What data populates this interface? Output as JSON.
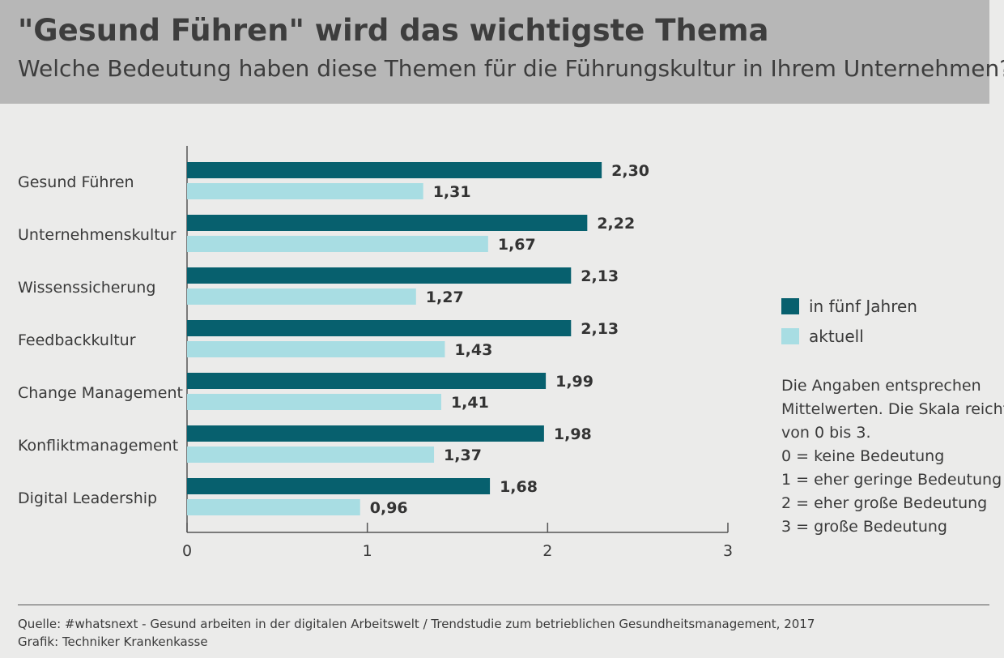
{
  "header": {
    "title": "\"Gesund Führen\" wird das wichtigste Thema",
    "subtitle": "Welche Bedeutung haben diese Themen für die Führungskultur in Ihrem Unternehmen?"
  },
  "colors": {
    "series_future": "#07606e",
    "series_current": "#a8dde3",
    "header_bg": "#b7b7b7",
    "background": "#ebebea"
  },
  "chart_data": {
    "type": "bar",
    "orientation": "horizontal",
    "categories": [
      "Gesund Führen",
      "Unternehmenskultur",
      "Wissenssicherung",
      "Feedbackkultur",
      "Change Management",
      "Konfliktmanagement",
      "Digital Leadership"
    ],
    "series": [
      {
        "name": "in fünf Jahren",
        "values": [
          2.3,
          2.22,
          2.13,
          2.13,
          1.99,
          1.98,
          1.68
        ],
        "labels": [
          "2,30",
          "2,22",
          "2,13",
          "2,13",
          "1,99",
          "1,98",
          "1,68"
        ],
        "color": "#07606e"
      },
      {
        "name": "aktuell",
        "values": [
          1.31,
          1.67,
          1.27,
          1.43,
          1.41,
          1.37,
          0.96
        ],
        "labels": [
          "1,31",
          "1,67",
          "1,27",
          "1,43",
          "1,41",
          "1,37",
          "0,96"
        ],
        "color": "#a8dde3"
      }
    ],
    "xlim": [
      0,
      3
    ],
    "xticks": [
      "0",
      "1",
      "2",
      "3"
    ],
    "legend": "right",
    "grid": false
  },
  "notes": [
    "Die Angaben entsprechen",
    "Mittelwerten. Die Skala reicht",
    "von 0 bis 3.",
    "0 = keine Bedeutung",
    "1 = eher geringe Bedeutung",
    "2 = eher große Bedeutung",
    "3 = große Bedeutung"
  ],
  "footer": {
    "source": "Quelle: #whatsnext - Gesund arbeiten in der digitalen Arbeitswelt / Trendstudie zum betrieblichen Gesundheitsmanagement, 2017",
    "credit": "Grafik: Techniker Krankenkasse"
  }
}
